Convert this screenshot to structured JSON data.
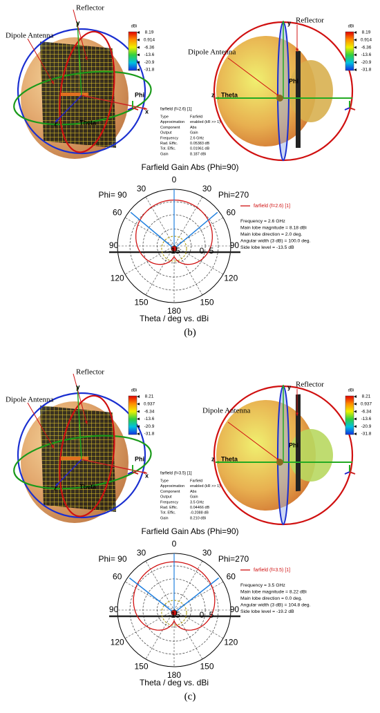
{
  "panels": [
    {
      "left": {
        "reflector": "Reflector",
        "dipole": "Dipole Antenna",
        "y": "y",
        "x": "x",
        "z": "z",
        "phi": "Phi",
        "theta": "Theta",
        "colorbar": {
          "unit": "dBi",
          "ticks": [
            "8.19",
            "0.914",
            "-6.36",
            "-13.6",
            "-20.9",
            "-31.8"
          ]
        },
        "info": {
          "title": "farfield (f=2.6) [1]",
          "rows": [
            [
              "Type",
              "Farfield"
            ],
            [
              "Approximation",
              "enabled (kR >> 1)"
            ],
            [
              "Component",
              "Abs"
            ],
            [
              "Output",
              "Gain"
            ],
            [
              "Frequency",
              "2.6 GHz"
            ],
            [
              "Rad. Effic.",
              "0.05383 dB"
            ],
            [
              "Tot. Effic.",
              "0.01961 dB"
            ],
            [
              "Gain",
              "8.187 dBi"
            ]
          ]
        }
      },
      "right": {
        "reflector": "Reflector",
        "dipole": "Dipole Antenna",
        "y": "y",
        "z": "z",
        "theta": "Theta",
        "phi": "Phi",
        "colorbar": {
          "unit": "dBi",
          "ticks": [
            "8.19",
            "0.914",
            "-6.36",
            "-13.6",
            "-20.9",
            "-31.8"
          ]
        }
      },
      "polar": {
        "title": "Farfield Gain Abs (Phi=90)",
        "phi_left": "Phi= 90",
        "phi_right": "Phi=270",
        "angles": [
          "0",
          "30",
          "60",
          "90",
          "120",
          "150",
          "180",
          "150",
          "120",
          "90",
          "60",
          "30"
        ],
        "radial": [
          "-15",
          "0",
          "5"
        ],
        "legend": "farfield (f=2.6) [1]",
        "stats": [
          "Frequency = 2.6 GHz",
          "Main lobe magnitude =   8.18 dBi",
          "Main lobe direction =   2.0 deg.",
          "Angular width (3 dB) = 100.0 deg.",
          "Side lobe level = -13.5 dB"
        ],
        "axis_label": "Theta / deg vs. dBi"
      },
      "caption": "(b)"
    },
    {
      "left": {
        "reflector": "Reflector",
        "dipole": "Dipole Antenna",
        "y": "y",
        "x": "x",
        "z": "z",
        "phi": "Phi",
        "theta": "Theta",
        "colorbar": {
          "unit": "dBi",
          "ticks": [
            "8.21",
            "0.937",
            "-6.34",
            "-13.6",
            "-20.9",
            "-31.8"
          ]
        },
        "info": {
          "title": "farfield (f=3.5) [1]",
          "rows": [
            [
              "Type",
              "Farfield"
            ],
            [
              "Approximation",
              "enabled (kR >> 1)"
            ],
            [
              "Component",
              "Abs"
            ],
            [
              "Output",
              "Gain"
            ],
            [
              "Frequency",
              "3.5 GHz"
            ],
            [
              "Rad. Effic.",
              "0.04466 dB"
            ],
            [
              "Tot. Effic.",
              "-0.2088 dB"
            ],
            [
              "Gain",
              "8.210 dBi"
            ]
          ]
        }
      },
      "right": {
        "reflector": "Reflector",
        "dipole": "Dipole Antenna",
        "y": "y",
        "z": "z",
        "theta": "Theta",
        "phi": "Phi",
        "colorbar": {
          "unit": "dBi",
          "ticks": [
            "8.21",
            "0.937",
            "-6.34",
            "-13.6",
            "-20.9",
            "-31.8"
          ]
        }
      },
      "polar": {
        "title": "Farfield Gain Abs (Phi=90)",
        "phi_left": "Phi= 90",
        "phi_right": "Phi=270",
        "angles": [
          "0",
          "30",
          "60",
          "90",
          "120",
          "150",
          "180",
          "150",
          "120",
          "90",
          "60",
          "30"
        ],
        "radial": [
          "-15",
          "0",
          "5"
        ],
        "legend": "farfield (f=3.5) [1]",
        "stats": [
          "Frequency = 3.5 GHz",
          "Main lobe magnitude =   8.22 dBi",
          "Main lobe direction =   0.0 deg.",
          "Angular width (3 dB) = 104.8 deg.",
          "Side lobe level = -19.2 dB"
        ],
        "axis_label": "Theta / deg vs. dBi"
      },
      "caption": "(c)"
    }
  ]
}
